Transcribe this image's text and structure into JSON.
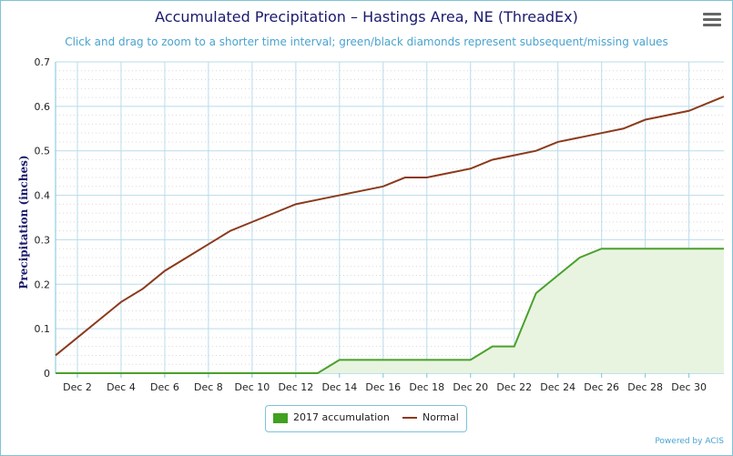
{
  "title": "Accumulated Precipitation – Hastings Area, NE (ThreadEx)",
  "subtitle": "Click and drag to zoom to a shorter time interval; green/black diamonds represent subsequent/missing values",
  "credits": "Powered by ACIS",
  "menu_icon": "hamburger-menu-icon",
  "colors": {
    "accumulation_line": "#4aa02c",
    "accumulation_fill": "#e8f4e0",
    "normal_line": "#8b3a1c",
    "grid": "#b9dcea",
    "axis_text": "#1a1a6e"
  },
  "chart_data": {
    "type": "area",
    "title": "Accumulated Precipitation – Hastings Area, NE (ThreadEx)",
    "ylabel": "Precipitation (inches)",
    "xlabel": "",
    "ylim": [
      0,
      0.7
    ],
    "xlim": [
      1,
      31.6
    ],
    "x_tick_labels": [
      {
        "day": 2,
        "label": "Dec 2"
      },
      {
        "day": 4,
        "label": "Dec 4"
      },
      {
        "day": 6,
        "label": "Dec 6"
      },
      {
        "day": 8,
        "label": "Dec 8"
      },
      {
        "day": 10,
        "label": "Dec 10"
      },
      {
        "day": 12,
        "label": "Dec 12"
      },
      {
        "day": 14,
        "label": "Dec 14"
      },
      {
        "day": 16,
        "label": "Dec 16"
      },
      {
        "day": 18,
        "label": "Dec 18"
      },
      {
        "day": 20,
        "label": "Dec 20"
      },
      {
        "day": 22,
        "label": "Dec 22"
      },
      {
        "day": 24,
        "label": "Dec 24"
      },
      {
        "day": 26,
        "label": "Dec 26"
      },
      {
        "day": 28,
        "label": "Dec 28"
      },
      {
        "day": 30,
        "label": "Dec 30"
      }
    ],
    "y_ticks": [
      0,
      0.1,
      0.2,
      0.3,
      0.4,
      0.5,
      0.6,
      0.7
    ],
    "y_tick_labels": [
      "0",
      "0.1",
      "0.2",
      "0.3",
      "0.4",
      "0.5",
      "0.6",
      "0.7"
    ],
    "grid": true,
    "legend_position": "bottom-center",
    "series": [
      {
        "name": "2017 accumulation",
        "type": "area",
        "x": [
          1,
          2,
          3,
          4,
          5,
          6,
          7,
          8,
          9,
          10,
          11,
          12,
          13,
          14,
          15,
          16,
          17,
          18,
          19,
          20,
          21,
          22,
          23,
          24,
          25,
          26,
          27,
          28,
          29,
          30,
          31
        ],
        "values": [
          0,
          0,
          0,
          0,
          0,
          0,
          0,
          0,
          0,
          0,
          0,
          0,
          0,
          0.03,
          0.03,
          0.03,
          0.03,
          0.03,
          0.03,
          0.03,
          0.06,
          0.06,
          0.18,
          0.22,
          0.26,
          0.28,
          0.28,
          0.28,
          0.28,
          0.28,
          0.28
        ]
      },
      {
        "name": "Normal",
        "type": "line",
        "x": [
          1,
          2,
          3,
          4,
          5,
          6,
          7,
          8,
          9,
          10,
          11,
          12,
          13,
          14,
          15,
          16,
          17,
          18,
          19,
          20,
          21,
          22,
          23,
          24,
          25,
          26,
          27,
          28,
          29,
          30,
          31
        ],
        "values": [
          0.04,
          0.08,
          0.12,
          0.16,
          0.19,
          0.23,
          0.26,
          0.29,
          0.32,
          0.34,
          0.36,
          0.38,
          0.39,
          0.4,
          0.41,
          0.42,
          0.44,
          0.44,
          0.45,
          0.46,
          0.48,
          0.49,
          0.5,
          0.52,
          0.53,
          0.54,
          0.55,
          0.57,
          0.58,
          0.59,
          0.61
        ]
      }
    ]
  }
}
